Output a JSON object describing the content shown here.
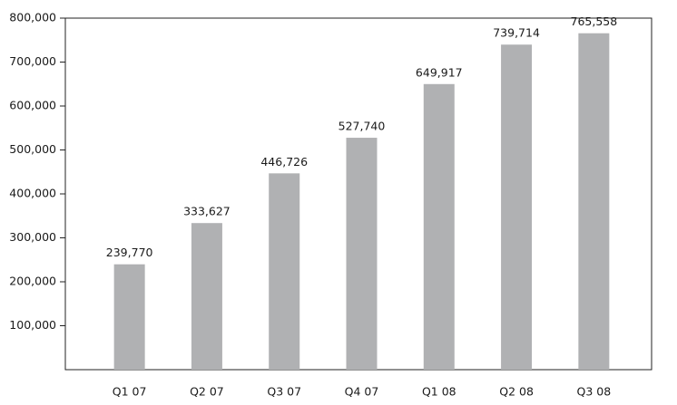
{
  "chart_data": {
    "type": "bar",
    "categories": [
      "Q1 07",
      "Q2 07",
      "Q3 07",
      "Q4 07",
      "Q1 08",
      "Q2 08",
      "Q3 08"
    ],
    "values": [
      239770,
      333627,
      446726,
      527740,
      649917,
      739714,
      765558
    ],
    "value_labels": [
      "239,770",
      "333,627",
      "446,726",
      "527,740",
      "649,917",
      "739,714",
      "765,558"
    ],
    "color": "#b0b1b3",
    "ylim": [
      0,
      800000
    ],
    "yticks": [
      {
        "value": 100000,
        "label": "100,000"
      },
      {
        "value": 200000,
        "label": "200,000"
      },
      {
        "value": 300000,
        "label": "300,000"
      },
      {
        "value": 400000,
        "label": "400,000"
      },
      {
        "value": 500000,
        "label": "500,000"
      },
      {
        "value": 600000,
        "label": "600,000"
      },
      {
        "value": 700000,
        "label": "700,000"
      },
      {
        "value": 800000,
        "label": "800,000"
      }
    ],
    "grid": false
  }
}
